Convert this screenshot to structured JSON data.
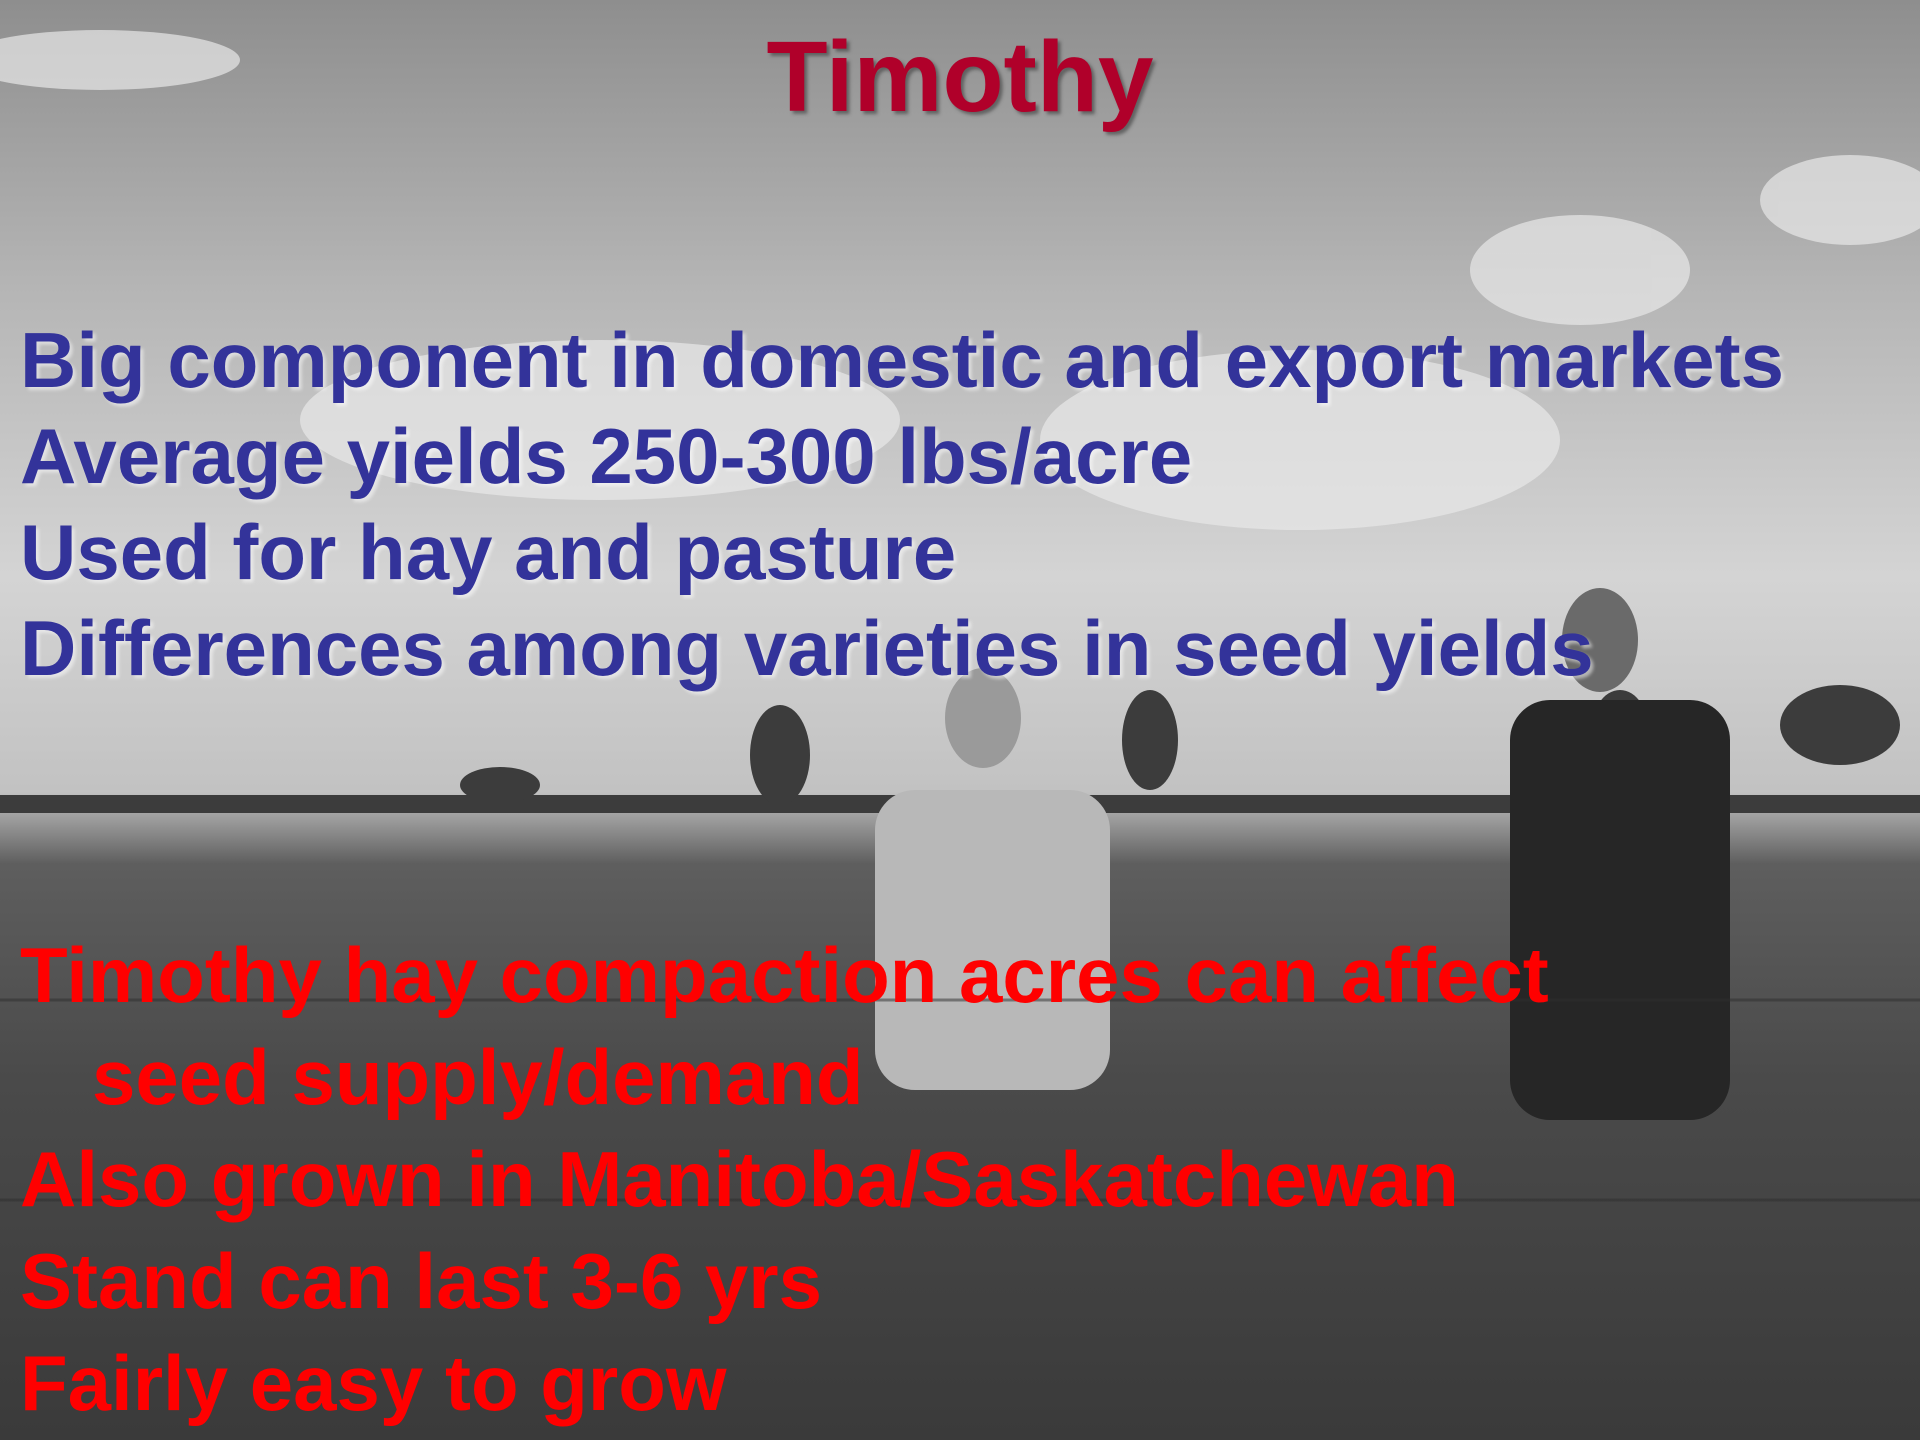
{
  "title": "Timothy",
  "points_blue": [
    "Big component in domestic and export markets",
    "Average yields 250-300 lbs/acre",
    "Used for hay and pasture",
    "Differences among varieties in seed yields"
  ],
  "points_red": [
    "Timothy hay compaction acres can affect seed supply/demand",
    "Also grown in Manitoba/Saskatchewan",
    "Stand can last 3-6 yrs",
    "Fairly easy to grow"
  ]
}
